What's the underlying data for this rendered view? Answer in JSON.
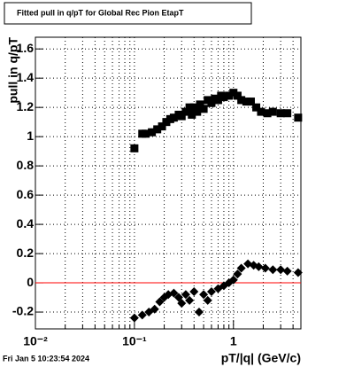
{
  "chart_data": {
    "type": "scatter",
    "title": "Fitted pull in q/pT for Global Rec Pion EtapT",
    "x_label": "pT/|q| (GeV/c)",
    "y_label": "pull in q/pT",
    "footer": "Fri Jan  5 10:23:54 2024",
    "x_log": true,
    "grid": true,
    "xlim": [
      0.01,
      4.8
    ],
    "ylim": [
      -0.315,
      1.68
    ],
    "xticks": [
      {
        "value": 0.01,
        "label": "10⁻²"
      },
      {
        "value": 0.1,
        "label": "10⁻¹"
      },
      1
    ],
    "x_minor_ticks": [
      0.02,
      0.03,
      0.04,
      0.05,
      0.06,
      0.07,
      0.08,
      0.09,
      0.2,
      0.3,
      0.4,
      0.5,
      0.6,
      0.7,
      0.8,
      0.9,
      2,
      3,
      4
    ],
    "yticks": [
      -0.2,
      0,
      0.2,
      0.4,
      0.6,
      0.8,
      1,
      1.2,
      1.4,
      1.6
    ],
    "reference_line": {
      "y": 0,
      "color": "#ff0000"
    },
    "series": [
      {
        "color": "#000000",
        "marker": "square",
        "x": [
          0.1,
          0.12,
          0.13,
          0.15,
          0.17,
          0.19,
          0.21,
          0.23,
          0.25,
          0.28,
          0.3,
          0.33,
          0.36,
          0.38,
          0.4,
          0.43,
          0.46,
          0.5,
          0.55,
          0.6,
          0.65,
          0.7,
          0.75,
          0.8,
          0.9,
          1.0,
          1.1,
          1.2,
          1.35,
          1.5,
          1.7,
          1.9,
          2.2,
          2.5,
          3.0,
          3.5,
          4.5
        ],
        "values": [
          0.92,
          1.02,
          1.02,
          1.03,
          1.05,
          1.07,
          1.1,
          1.12,
          1.13,
          1.15,
          1.14,
          1.17,
          1.2,
          1.15,
          1.2,
          1.17,
          1.22,
          1.19,
          1.25,
          1.23,
          1.26,
          1.25,
          1.28,
          1.27,
          1.28,
          1.3,
          1.28,
          1.25,
          1.24,
          1.24,
          1.2,
          1.17,
          1.16,
          1.17,
          1.16,
          1.16,
          1.13
        ]
      },
      {
        "color": "#000000",
        "marker": "diamond",
        "x": [
          0.1,
          0.12,
          0.14,
          0.16,
          0.18,
          0.2,
          0.22,
          0.25,
          0.28,
          0.3,
          0.33,
          0.36,
          0.4,
          0.45,
          0.5,
          0.55,
          0.6,
          0.7,
          0.8,
          0.9,
          1.0,
          1.1,
          1.2,
          1.4,
          1.6,
          1.8,
          2.1,
          2.5,
          3.0,
          3.5,
          4.5
        ],
        "values": [
          -0.24,
          -0.22,
          -0.2,
          -0.18,
          -0.13,
          -0.1,
          -0.08,
          -0.07,
          -0.1,
          -0.14,
          -0.08,
          -0.12,
          -0.06,
          -0.2,
          -0.08,
          -0.12,
          -0.06,
          -0.04,
          -0.02,
          0.0,
          0.02,
          0.06,
          0.1,
          0.13,
          0.12,
          0.11,
          0.1,
          0.09,
          0.09,
          0.08,
          0.07
        ]
      }
    ]
  }
}
